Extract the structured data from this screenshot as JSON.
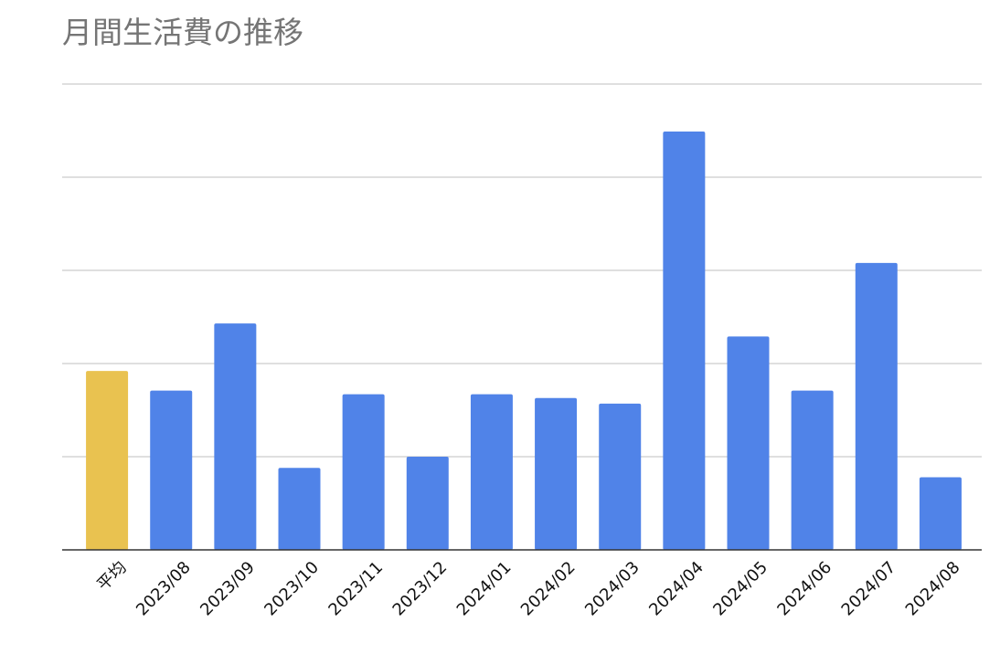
{
  "chart_data": {
    "type": "bar",
    "title": "月間生活費の推移",
    "categories": [
      "平均",
      "2023/08",
      "2023/09",
      "2023/10",
      "2023/11",
      "2023/12",
      "2024/01",
      "2024/02",
      "2024/03",
      "2024/04",
      "2024/05",
      "2024/06",
      "2024/07",
      "2024/08"
    ],
    "values": [
      1.92,
      1.71,
      2.43,
      0.88,
      1.67,
      1.0,
      1.67,
      1.63,
      1.57,
      4.49,
      2.29,
      1.71,
      3.08,
      0.78
    ],
    "colors": [
      "#e9c250",
      "#5083e8",
      "#5083e8",
      "#5083e8",
      "#5083e8",
      "#5083e8",
      "#5083e8",
      "#5083e8",
      "#5083e8",
      "#5083e8",
      "#5083e8",
      "#5083e8",
      "#5083e8",
      "#5083e8"
    ],
    "ylim": [
      0,
      5
    ],
    "yticks": [
      0,
      1,
      2,
      3,
      4,
      5
    ],
    "grid": true,
    "show_ytick_labels": false
  }
}
